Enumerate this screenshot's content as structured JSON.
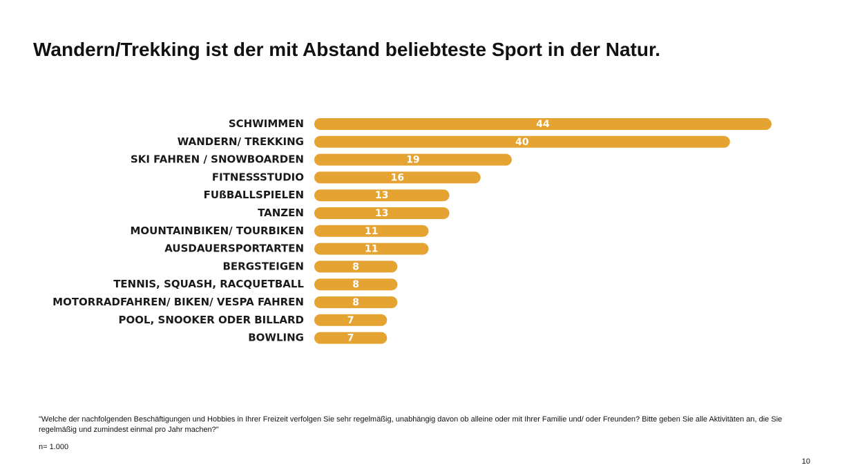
{
  "slide": {
    "title": "Wandern/Trekking ist der mit Abstand beliebteste Sport in der Natur.",
    "footnote": "\"Welche der nachfolgenden Beschäftigungen und Hobbies in Ihrer Freizeit verfolgen Sie sehr regelmäßig, unabhängig davon ob alleine oder mit Ihrer Familie und/ oder Freunden? Bitte geben Sie alle Aktivitäten an, die Sie regelmäßig und zumindest einmal pro Jahr machen?\"",
    "sample_size": "n= 1.000",
    "page_number": "10"
  },
  "colors": {
    "bar": "#E5A331",
    "bar_label": "#FFFFFF",
    "category_label": "#1A1A1A"
  },
  "chart_data": {
    "type": "bar",
    "orientation": "horizontal",
    "categories": [
      "SCHWIMMEN",
      "WANDERN/ TREKKING",
      "SKI FAHREN / SNOWBOARDEN",
      "FITNESSSTUDIO",
      "FUßBALLSPIELEN",
      "TANZEN",
      "MOUNTAINBIKEN/ TOURBIKEN",
      "AUSDAUERSPORTARTEN",
      "BERGSTEIGEN",
      "TENNIS, SQUASH, RACQUETBALL",
      "MOTORRADFAHREN/ BIKEN/ VESPA FAHREN",
      "POOL, SNOOKER ODER BILLARD",
      "BOWLING"
    ],
    "values": [
      44,
      40,
      19,
      16,
      13,
      13,
      11,
      11,
      8,
      8,
      8,
      7,
      7
    ],
    "title": "",
    "xlabel": "",
    "ylabel": "",
    "xlim": [
      0,
      44
    ],
    "grid": false,
    "legend": "none"
  }
}
